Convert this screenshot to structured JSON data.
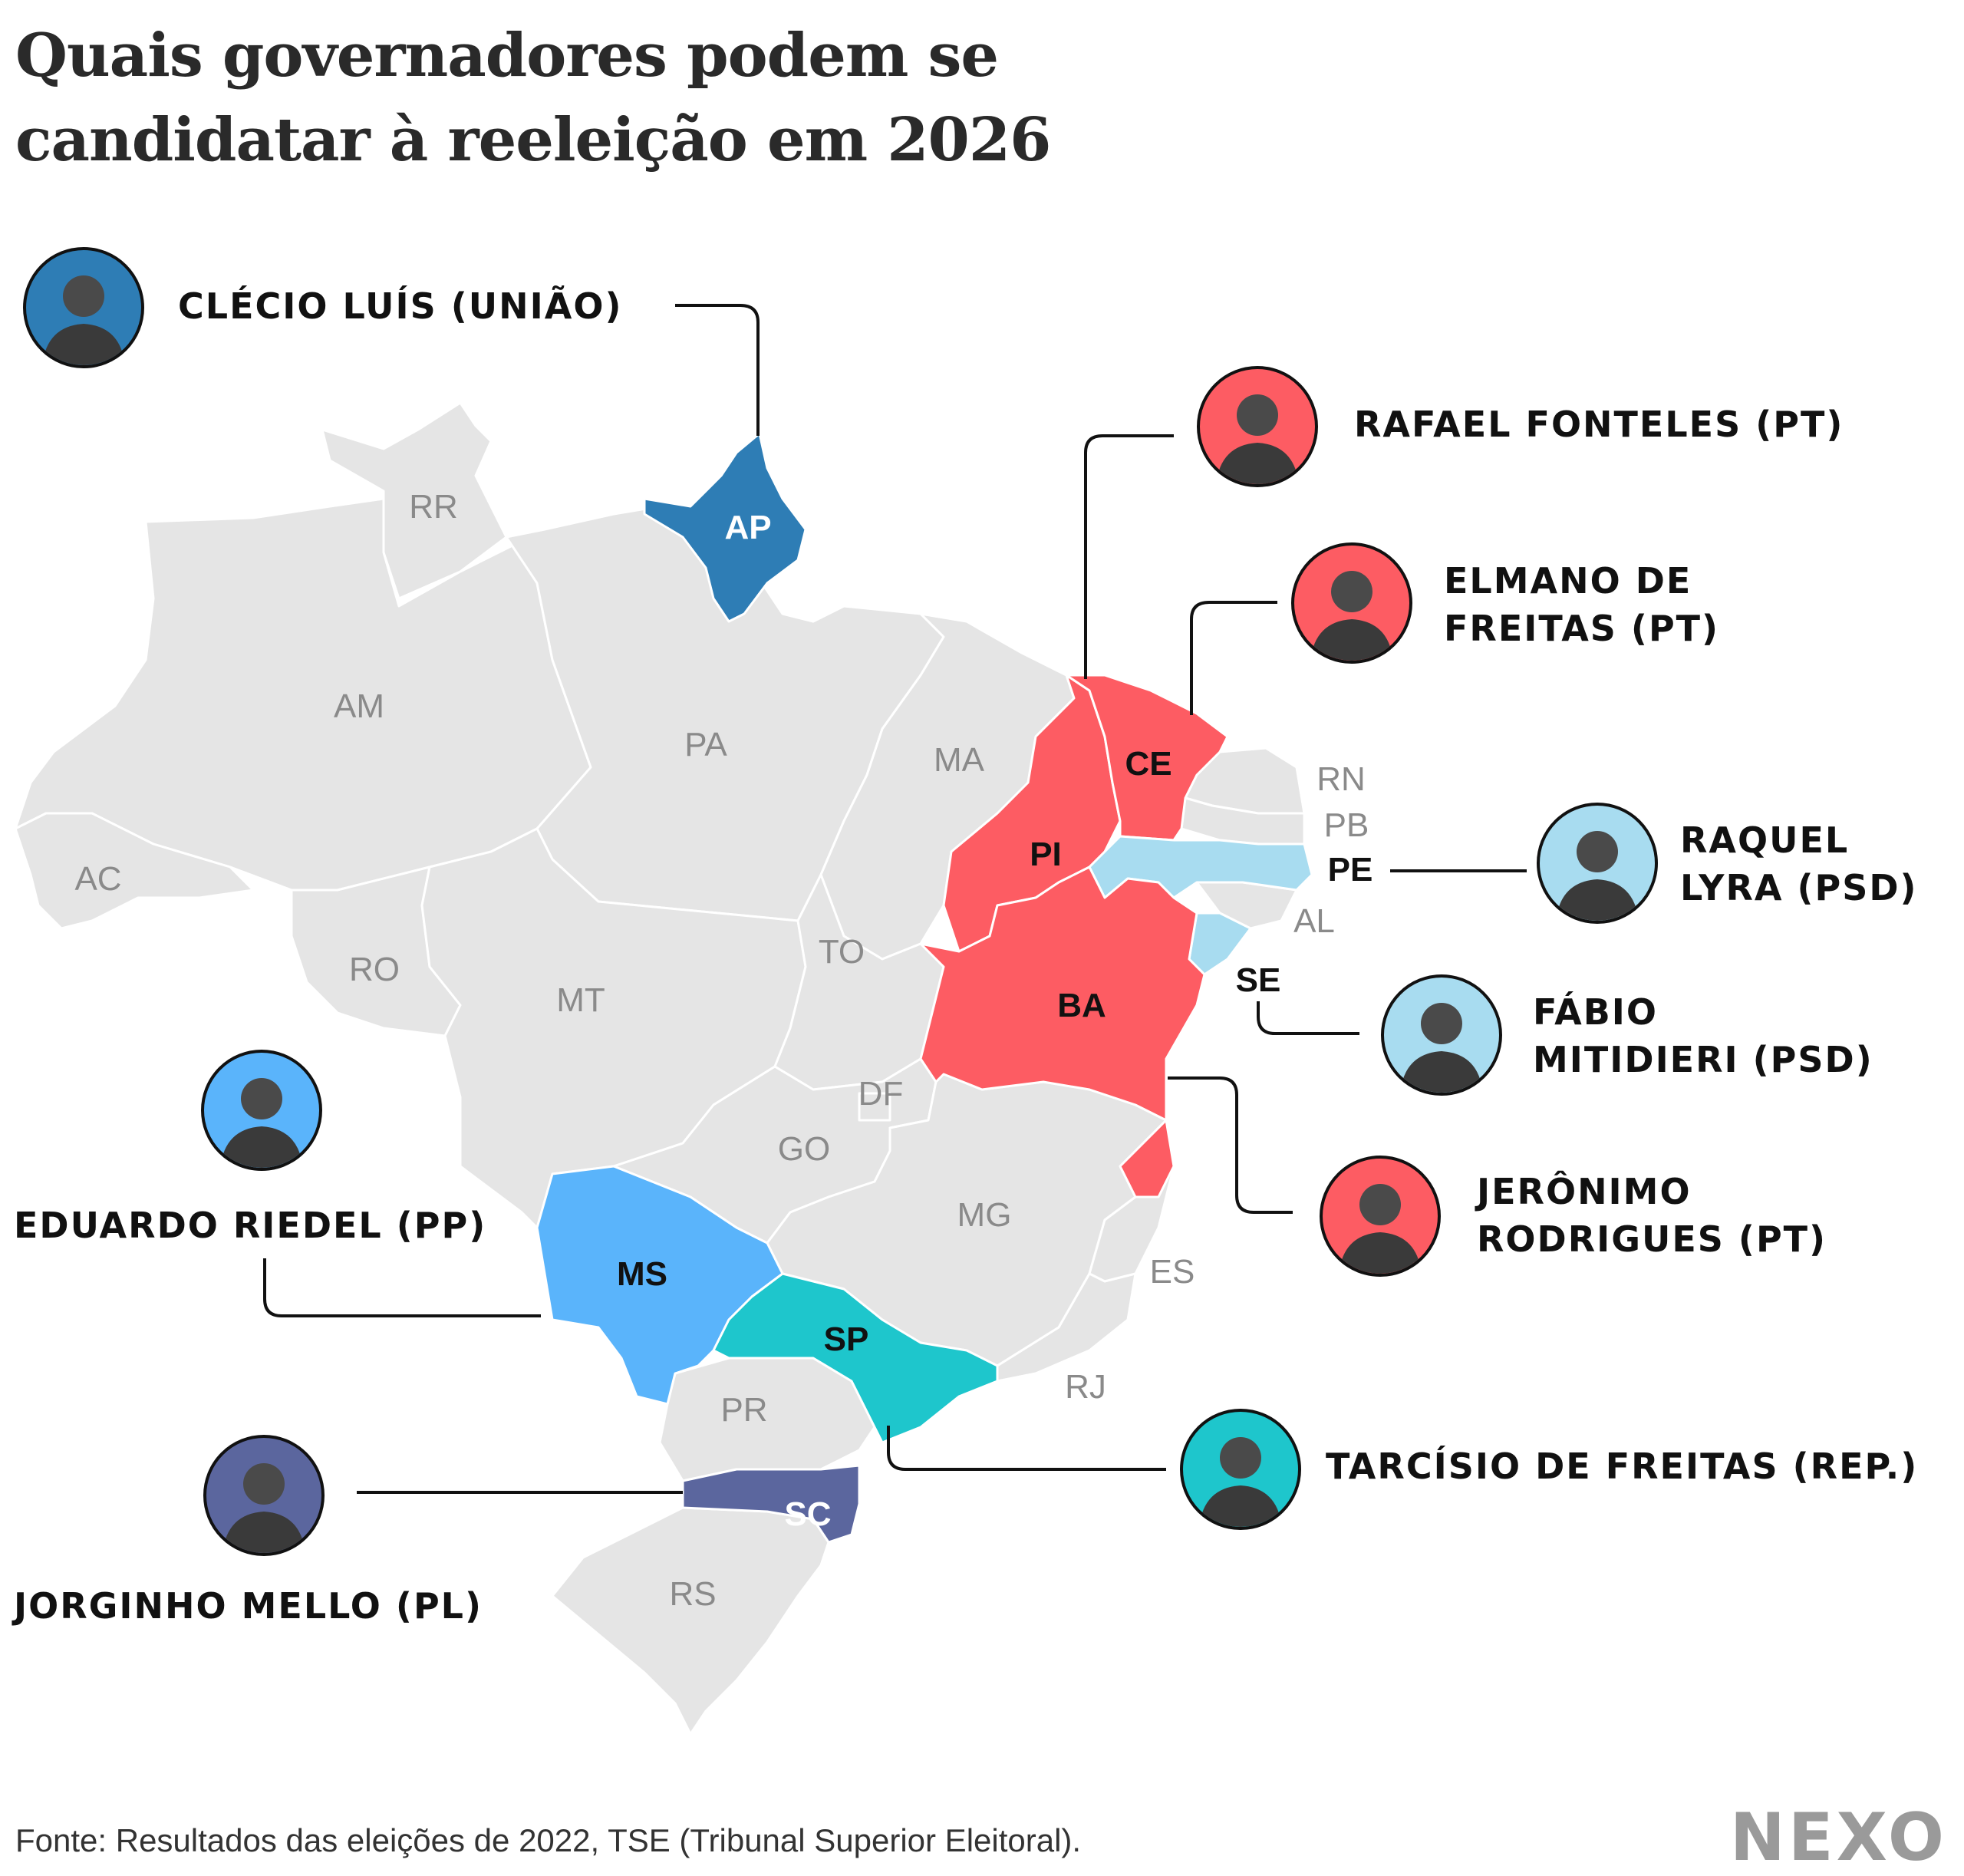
{
  "title_lines": [
    "Quais governadores podem se",
    "candidatar à reeleição em 2026"
  ],
  "source": "Fonte: Resultados das eleições de 2022, TSE (Tribunal Superior Eleitoral).",
  "logo": "NEXO",
  "colors": {
    "gray_state": "#e5e5e5",
    "uniao": "#2e7db5",
    "pt": "#fd5c63",
    "psd": "#a8dcf0",
    "pp": "#5ab4fb",
    "rep": "#1ec6cc",
    "pl": "#5b669e"
  },
  "states": {
    "RR": "RR",
    "AP": "AP",
    "AM": "AM",
    "PA": "PA",
    "MA": "MA",
    "CE": "CE",
    "RN": "RN",
    "PB": "PB",
    "PE": "PE",
    "PI": "PI",
    "AC": "AC",
    "AL": "AL",
    "RO": "RO",
    "TO": "TO",
    "SE": "SE",
    "MT": "MT",
    "BA": "BA",
    "DF": "DF",
    "GO": "GO",
    "MG": "MG",
    "ES": "ES",
    "MS": "MS",
    "SP": "SP",
    "RJ": "RJ",
    "PR": "PR",
    "SC": "SC",
    "RS": "RS"
  },
  "governors": [
    {
      "state": "AP",
      "lines": [
        "CLÉCIO LUÍS (UNIÃO)"
      ],
      "party_color": "#2e7db5"
    },
    {
      "state": "PI",
      "lines": [
        "RAFAEL FONTELES (PT)"
      ],
      "party_color": "#fd5c63"
    },
    {
      "state": "CE",
      "lines": [
        "ELMANO DE",
        "FREITAS (PT)"
      ],
      "party_color": "#fd5c63"
    },
    {
      "state": "PE",
      "lines": [
        "RAQUEL",
        "LYRA (PSD)"
      ],
      "party_color": "#a8dcf0"
    },
    {
      "state": "SE",
      "lines": [
        "FÁBIO",
        "MITIDIERI (PSD)"
      ],
      "party_color": "#a8dcf0"
    },
    {
      "state": "BA",
      "lines": [
        "JERÔNIMO",
        "RODRIGUES (PT)"
      ],
      "party_color": "#fd5c63"
    },
    {
      "state": "MS",
      "lines": [
        "EDUARDO RIEDEL (PP)"
      ],
      "party_color": "#5ab4fb"
    },
    {
      "state": "SP",
      "lines": [
        "TARCÍSIO DE FREITAS (REP.)"
      ],
      "party_color": "#1ec6cc"
    },
    {
      "state": "SC",
      "lines": [
        "JORGINHO MELLO (PL)"
      ],
      "party_color": "#5b669e"
    }
  ]
}
